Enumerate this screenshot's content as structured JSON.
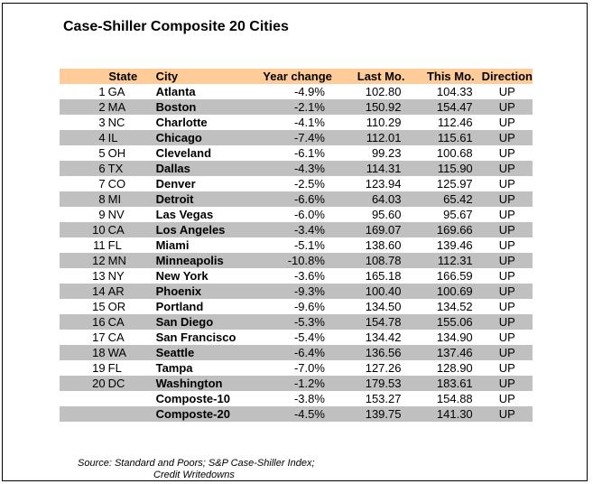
{
  "title": "Case-Shiller Composite 20 Cities",
  "colors": {
    "header_bg": "#FFCC99",
    "band_bg": "#C0C0C0",
    "border": "#000000"
  },
  "table": {
    "headers": {
      "state": "State",
      "city": "City",
      "year_change": "Year change",
      "last_mo": "Last Mo.",
      "this_mo": "This Mo.",
      "direction": "Direction"
    },
    "rows": [
      {
        "num": "1",
        "state": "GA",
        "city": "Atlanta",
        "year_change": "-4.9%",
        "last_mo": "102.80",
        "this_mo": "104.33",
        "direction": "UP"
      },
      {
        "num": "2",
        "state": "MA",
        "city": "Boston",
        "year_change": "-2.1%",
        "last_mo": "150.92",
        "this_mo": "154.47",
        "direction": "UP"
      },
      {
        "num": "3",
        "state": "NC",
        "city": "Charlotte",
        "year_change": "-4.1%",
        "last_mo": "110.29",
        "this_mo": "112.46",
        "direction": "UP"
      },
      {
        "num": "4",
        "state": "IL",
        "city": "Chicago",
        "year_change": "-7.4%",
        "last_mo": "112.01",
        "this_mo": "115.61",
        "direction": "UP"
      },
      {
        "num": "5",
        "state": "OH",
        "city": "Cleveland",
        "year_change": "-6.1%",
        "last_mo": "99.23",
        "this_mo": "100.68",
        "direction": "UP"
      },
      {
        "num": "6",
        "state": "TX",
        "city": "Dallas",
        "year_change": "-4.3%",
        "last_mo": "114.31",
        "this_mo": "115.90",
        "direction": "UP"
      },
      {
        "num": "7",
        "state": "CO",
        "city": "Denver",
        "year_change": "-2.5%",
        "last_mo": "123.94",
        "this_mo": "125.97",
        "direction": "UP"
      },
      {
        "num": "8",
        "state": "MI",
        "city": "Detroit",
        "year_change": "-6.6%",
        "last_mo": "64.03",
        "this_mo": "65.42",
        "direction": "UP"
      },
      {
        "num": "9",
        "state": "NV",
        "city": "Las Vegas",
        "year_change": "-6.0%",
        "last_mo": "95.60",
        "this_mo": "95.67",
        "direction": "UP"
      },
      {
        "num": "10",
        "state": "CA",
        "city": "Los Angeles",
        "year_change": "-3.4%",
        "last_mo": "169.07",
        "this_mo": "169.66",
        "direction": "UP"
      },
      {
        "num": "11",
        "state": "FL",
        "city": "Miami",
        "year_change": "-5.1%",
        "last_mo": "138.60",
        "this_mo": "139.46",
        "direction": "UP"
      },
      {
        "num": "12",
        "state": "MN",
        "city": "Minneapolis",
        "year_change": "-10.8%",
        "last_mo": "108.78",
        "this_mo": "112.31",
        "direction": "UP"
      },
      {
        "num": "13",
        "state": "NY",
        "city": "New York",
        "year_change": "-3.6%",
        "last_mo": "165.18",
        "this_mo": "166.59",
        "direction": "UP"
      },
      {
        "num": "14",
        "state": "AR",
        "city": "Phoenix",
        "year_change": "-9.3%",
        "last_mo": "100.40",
        "this_mo": "100.69",
        "direction": "UP"
      },
      {
        "num": "15",
        "state": "OR",
        "city": "Portland",
        "year_change": "-9.6%",
        "last_mo": "134.50",
        "this_mo": "134.52",
        "direction": "UP"
      },
      {
        "num": "16",
        "state": "CA",
        "city": "San Diego",
        "year_change": "-5.3%",
        "last_mo": "154.78",
        "this_mo": "155.06",
        "direction": "UP"
      },
      {
        "num": "17",
        "state": "CA",
        "city": "San Francisco",
        "year_change": "-5.4%",
        "last_mo": "134.42",
        "this_mo": "134.90",
        "direction": "UP"
      },
      {
        "num": "18",
        "state": "WA",
        "city": "Seattle",
        "year_change": "-6.4%",
        "last_mo": "136.56",
        "this_mo": "137.46",
        "direction": "UP"
      },
      {
        "num": "19",
        "state": "FL",
        "city": "Tampa",
        "year_change": "-7.0%",
        "last_mo": "127.26",
        "this_mo": "128.90",
        "direction": "UP"
      },
      {
        "num": "20",
        "state": "DC",
        "city": "Washington",
        "year_change": "-1.2%",
        "last_mo": "179.53",
        "this_mo": "183.61",
        "direction": "UP"
      },
      {
        "num": "",
        "state": "",
        "city": "Composte-10",
        "year_change": "-3.8%",
        "last_mo": "153.27",
        "this_mo": "154.88",
        "direction": "UP"
      },
      {
        "num": "",
        "state": "",
        "city": "Composte-20",
        "year_change": "-4.5%",
        "last_mo": "139.75",
        "this_mo": "141.30",
        "direction": "UP"
      }
    ]
  },
  "source": {
    "line1": "Source: Standard and Poors; S&P Case-Shiller Index;",
    "line2": "Credit Writedowns"
  }
}
